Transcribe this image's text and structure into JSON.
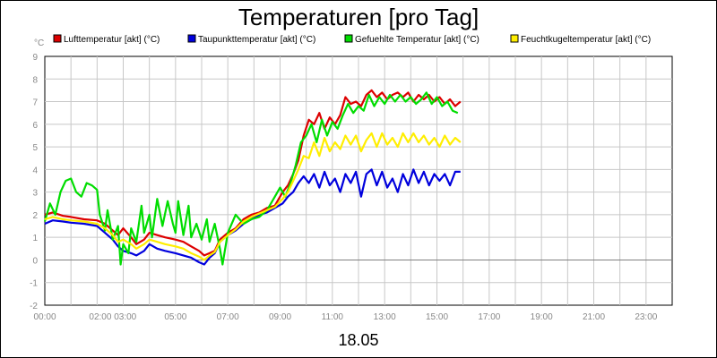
{
  "chart_data": {
    "type": "line",
    "title": "Temperaturen [pro Tag]",
    "y_unit": "°C",
    "date_label": "18.05",
    "ylim": [
      -2,
      9
    ],
    "y_ticks": [
      "-2",
      "-1",
      "0",
      "1",
      "2",
      "3",
      "4",
      "5",
      "6",
      "7",
      "8",
      "9"
    ],
    "x_range_hours": [
      0,
      24
    ],
    "x_tick_labels": [
      {
        "h": 0,
        "label": "00:00"
      },
      {
        "h": 2.6,
        "label": "02:00 03:00"
      },
      {
        "h": 5,
        "label": "05:00"
      },
      {
        "h": 7,
        "label": "07:00"
      },
      {
        "h": 9,
        "label": "09:00"
      },
      {
        "h": 11,
        "label": "11:00"
      },
      {
        "h": 13,
        "label": "13:00"
      },
      {
        "h": 15,
        "label": "15:00"
      },
      {
        "h": 17,
        "label": "17:00"
      },
      {
        "h": 19,
        "label": "19:00"
      },
      {
        "h": 21,
        "label": "21:00"
      },
      {
        "h": 23,
        "label": "23:00"
      }
    ],
    "grid": true,
    "legend_position": "top",
    "series": [
      {
        "name": "Lufttemperatur [akt] (°C)",
        "color": "#dd0000",
        "points": [
          [
            0,
            2.0
          ],
          [
            0.3,
            2.1
          ],
          [
            0.7,
            1.95
          ],
          [
            1.0,
            1.9
          ],
          [
            1.5,
            1.8
          ],
          [
            2.0,
            1.75
          ],
          [
            2.3,
            1.6
          ],
          [
            2.6,
            1.3
          ],
          [
            2.8,
            1.1
          ],
          [
            3.0,
            1.4
          ],
          [
            3.3,
            1.0
          ],
          [
            3.5,
            0.7
          ],
          [
            3.8,
            0.9
          ],
          [
            4.0,
            1.2
          ],
          [
            4.3,
            1.1
          ],
          [
            4.6,
            1.0
          ],
          [
            5.0,
            0.9
          ],
          [
            5.3,
            0.8
          ],
          [
            5.6,
            0.6
          ],
          [
            5.9,
            0.4
          ],
          [
            6.1,
            0.2
          ],
          [
            6.3,
            0.3
          ],
          [
            6.5,
            0.4
          ],
          [
            6.7,
            0.9
          ],
          [
            7.0,
            1.2
          ],
          [
            7.3,
            1.4
          ],
          [
            7.6,
            1.8
          ],
          [
            7.9,
            2.0
          ],
          [
            8.2,
            2.1
          ],
          [
            8.5,
            2.3
          ],
          [
            8.8,
            2.4
          ],
          [
            9.1,
            3.0
          ],
          [
            9.3,
            3.3
          ],
          [
            9.5,
            3.8
          ],
          [
            9.7,
            4.4
          ],
          [
            9.9,
            5.5
          ],
          [
            10.1,
            6.2
          ],
          [
            10.3,
            6.0
          ],
          [
            10.5,
            6.5
          ],
          [
            10.7,
            5.8
          ],
          [
            10.9,
            6.3
          ],
          [
            11.1,
            6.0
          ],
          [
            11.3,
            6.4
          ],
          [
            11.5,
            7.2
          ],
          [
            11.7,
            6.9
          ],
          [
            11.9,
            7.0
          ],
          [
            12.1,
            6.8
          ],
          [
            12.3,
            7.3
          ],
          [
            12.5,
            7.5
          ],
          [
            12.7,
            7.2
          ],
          [
            12.9,
            7.4
          ],
          [
            13.1,
            7.1
          ],
          [
            13.3,
            7.3
          ],
          [
            13.5,
            7.4
          ],
          [
            13.7,
            7.2
          ],
          [
            13.9,
            7.4
          ],
          [
            14.1,
            7.0
          ],
          [
            14.3,
            7.3
          ],
          [
            14.5,
            7.1
          ],
          [
            14.7,
            7.3
          ],
          [
            14.9,
            7.0
          ],
          [
            15.1,
            7.2
          ],
          [
            15.3,
            6.9
          ],
          [
            15.5,
            7.1
          ],
          [
            15.7,
            6.8
          ],
          [
            15.9,
            7.0
          ]
        ]
      },
      {
        "name": "Taupunkttemperatur [akt] (°C)",
        "color": "#0000dd",
        "points": [
          [
            0,
            1.6
          ],
          [
            0.3,
            1.75
          ],
          [
            0.7,
            1.7
          ],
          [
            1.0,
            1.65
          ],
          [
            1.5,
            1.6
          ],
          [
            2.0,
            1.5
          ],
          [
            2.3,
            1.2
          ],
          [
            2.6,
            0.9
          ],
          [
            2.8,
            0.6
          ],
          [
            3.0,
            0.4
          ],
          [
            3.3,
            0.3
          ],
          [
            3.5,
            0.2
          ],
          [
            3.8,
            0.4
          ],
          [
            4.0,
            0.7
          ],
          [
            4.3,
            0.5
          ],
          [
            4.6,
            0.4
          ],
          [
            5.0,
            0.3
          ],
          [
            5.3,
            0.2
          ],
          [
            5.6,
            0.1
          ],
          [
            5.9,
            -0.1
          ],
          [
            6.1,
            -0.2
          ],
          [
            6.3,
            0.1
          ],
          [
            6.5,
            0.3
          ],
          [
            6.7,
            0.8
          ],
          [
            7.0,
            1.1
          ],
          [
            7.3,
            1.3
          ],
          [
            7.6,
            1.6
          ],
          [
            7.9,
            1.8
          ],
          [
            8.2,
            2.0
          ],
          [
            8.5,
            2.1
          ],
          [
            8.8,
            2.3
          ],
          [
            9.1,
            2.5
          ],
          [
            9.3,
            2.8
          ],
          [
            9.5,
            3.0
          ],
          [
            9.7,
            3.4
          ],
          [
            9.9,
            3.7
          ],
          [
            10.1,
            3.4
          ],
          [
            10.3,
            3.8
          ],
          [
            10.5,
            3.2
          ],
          [
            10.7,
            3.9
          ],
          [
            10.9,
            3.3
          ],
          [
            11.1,
            3.6
          ],
          [
            11.3,
            3.0
          ],
          [
            11.5,
            3.8
          ],
          [
            11.7,
            3.4
          ],
          [
            11.9,
            3.9
          ],
          [
            12.1,
            2.8
          ],
          [
            12.3,
            3.8
          ],
          [
            12.5,
            4.0
          ],
          [
            12.7,
            3.3
          ],
          [
            12.9,
            3.9
          ],
          [
            13.1,
            3.2
          ],
          [
            13.3,
            3.6
          ],
          [
            13.5,
            3.0
          ],
          [
            13.7,
            3.8
          ],
          [
            13.9,
            3.3
          ],
          [
            14.1,
            4.0
          ],
          [
            14.3,
            3.4
          ],
          [
            14.5,
            3.9
          ],
          [
            14.7,
            3.3
          ],
          [
            14.9,
            3.8
          ],
          [
            15.1,
            3.5
          ],
          [
            15.3,
            3.8
          ],
          [
            15.5,
            3.3
          ],
          [
            15.7,
            3.9
          ],
          [
            15.9,
            3.9
          ]
        ]
      },
      {
        "name": "Gefuehlte Temperatur [akt] (°C)",
        "color": "#00dd00",
        "points": [
          [
            0,
            1.7
          ],
          [
            0.2,
            2.5
          ],
          [
            0.4,
            2.0
          ],
          [
            0.6,
            3.0
          ],
          [
            0.8,
            3.5
          ],
          [
            1.0,
            3.6
          ],
          [
            1.2,
            3.0
          ],
          [
            1.4,
            2.8
          ],
          [
            1.6,
            3.4
          ],
          [
            1.8,
            3.3
          ],
          [
            2.0,
            3.1
          ],
          [
            2.1,
            2.0
          ],
          [
            2.3,
            1.3
          ],
          [
            2.4,
            2.2
          ],
          [
            2.6,
            0.9
          ],
          [
            2.8,
            1.5
          ],
          [
            2.9,
            -0.2
          ],
          [
            3.0,
            0.7
          ],
          [
            3.2,
            0.3
          ],
          [
            3.3,
            1.4
          ],
          [
            3.5,
            0.8
          ],
          [
            3.7,
            2.4
          ],
          [
            3.8,
            1.2
          ],
          [
            4.0,
            2.0
          ],
          [
            4.1,
            1.0
          ],
          [
            4.3,
            2.7
          ],
          [
            4.5,
            1.5
          ],
          [
            4.7,
            2.6
          ],
          [
            4.9,
            1.6
          ],
          [
            5.0,
            1.2
          ],
          [
            5.1,
            2.6
          ],
          [
            5.3,
            1.1
          ],
          [
            5.5,
            2.4
          ],
          [
            5.6,
            1.0
          ],
          [
            5.8,
            1.6
          ],
          [
            6.0,
            0.9
          ],
          [
            6.2,
            1.8
          ],
          [
            6.3,
            0.8
          ],
          [
            6.5,
            1.6
          ],
          [
            6.7,
            0.5
          ],
          [
            6.8,
            -0.2
          ],
          [
            7.0,
            1.2
          ],
          [
            7.3,
            2.0
          ],
          [
            7.6,
            1.6
          ],
          [
            7.9,
            1.8
          ],
          [
            8.2,
            1.9
          ],
          [
            8.5,
            2.2
          ],
          [
            8.8,
            2.8
          ],
          [
            9.0,
            3.2
          ],
          [
            9.2,
            2.8
          ],
          [
            9.4,
            3.4
          ],
          [
            9.6,
            4.2
          ],
          [
            9.8,
            5.2
          ],
          [
            10.0,
            5.5
          ],
          [
            10.2,
            6.0
          ],
          [
            10.4,
            5.2
          ],
          [
            10.6,
            6.2
          ],
          [
            10.8,
            5.5
          ],
          [
            11.0,
            6.1
          ],
          [
            11.2,
            5.8
          ],
          [
            11.4,
            6.4
          ],
          [
            11.6,
            6.9
          ],
          [
            11.8,
            6.5
          ],
          [
            12.0,
            6.8
          ],
          [
            12.2,
            6.6
          ],
          [
            12.4,
            7.3
          ],
          [
            12.6,
            6.8
          ],
          [
            12.8,
            7.2
          ],
          [
            13.0,
            6.9
          ],
          [
            13.2,
            7.3
          ],
          [
            13.4,
            7.0
          ],
          [
            13.6,
            7.3
          ],
          [
            13.8,
            7.0
          ],
          [
            14.0,
            7.2
          ],
          [
            14.2,
            6.9
          ],
          [
            14.4,
            7.1
          ],
          [
            14.6,
            7.4
          ],
          [
            14.8,
            6.9
          ],
          [
            15.0,
            7.2
          ],
          [
            15.2,
            6.8
          ],
          [
            15.4,
            7.0
          ],
          [
            15.6,
            6.6
          ],
          [
            15.8,
            6.5
          ]
        ]
      },
      {
        "name": "Feuchtkugeltemperatur [akt] (°C)",
        "color": "#ffee00",
        "points": [
          [
            0,
            1.8
          ],
          [
            0.3,
            1.9
          ],
          [
            0.7,
            1.8
          ],
          [
            1.0,
            1.75
          ],
          [
            1.5,
            1.7
          ],
          [
            2.0,
            1.6
          ],
          [
            2.3,
            1.4
          ],
          [
            2.6,
            1.1
          ],
          [
            2.8,
            0.8
          ],
          [
            3.0,
            0.9
          ],
          [
            3.3,
            0.7
          ],
          [
            3.5,
            0.5
          ],
          [
            3.8,
            0.7
          ],
          [
            4.0,
            0.9
          ],
          [
            4.3,
            0.8
          ],
          [
            4.6,
            0.7
          ],
          [
            5.0,
            0.6
          ],
          [
            5.3,
            0.5
          ],
          [
            5.6,
            0.3
          ],
          [
            5.9,
            0.15
          ],
          [
            6.1,
            0.0
          ],
          [
            6.3,
            0.2
          ],
          [
            6.5,
            0.35
          ],
          [
            6.7,
            0.8
          ],
          [
            7.0,
            1.1
          ],
          [
            7.3,
            1.35
          ],
          [
            7.6,
            1.7
          ],
          [
            7.9,
            1.9
          ],
          [
            8.2,
            2.05
          ],
          [
            8.5,
            2.2
          ],
          [
            8.8,
            2.35
          ],
          [
            9.1,
            2.7
          ],
          [
            9.3,
            3.0
          ],
          [
            9.5,
            3.5
          ],
          [
            9.7,
            4.0
          ],
          [
            9.9,
            4.6
          ],
          [
            10.1,
            4.5
          ],
          [
            10.3,
            5.2
          ],
          [
            10.5,
            4.6
          ],
          [
            10.7,
            5.4
          ],
          [
            10.9,
            4.8
          ],
          [
            11.1,
            5.2
          ],
          [
            11.3,
            4.9
          ],
          [
            11.5,
            5.5
          ],
          [
            11.7,
            5.1
          ],
          [
            11.9,
            5.5
          ],
          [
            12.1,
            4.8
          ],
          [
            12.3,
            5.3
          ],
          [
            12.5,
            5.6
          ],
          [
            12.7,
            5.0
          ],
          [
            12.9,
            5.6
          ],
          [
            13.1,
            5.1
          ],
          [
            13.3,
            5.4
          ],
          [
            13.5,
            5.0
          ],
          [
            13.7,
            5.6
          ],
          [
            13.9,
            5.2
          ],
          [
            14.1,
            5.6
          ],
          [
            14.3,
            5.2
          ],
          [
            14.5,
            5.5
          ],
          [
            14.7,
            5.1
          ],
          [
            14.9,
            5.4
          ],
          [
            15.1,
            5.0
          ],
          [
            15.3,
            5.5
          ],
          [
            15.5,
            5.1
          ],
          [
            15.7,
            5.4
          ],
          [
            15.9,
            5.2
          ]
        ]
      }
    ]
  }
}
